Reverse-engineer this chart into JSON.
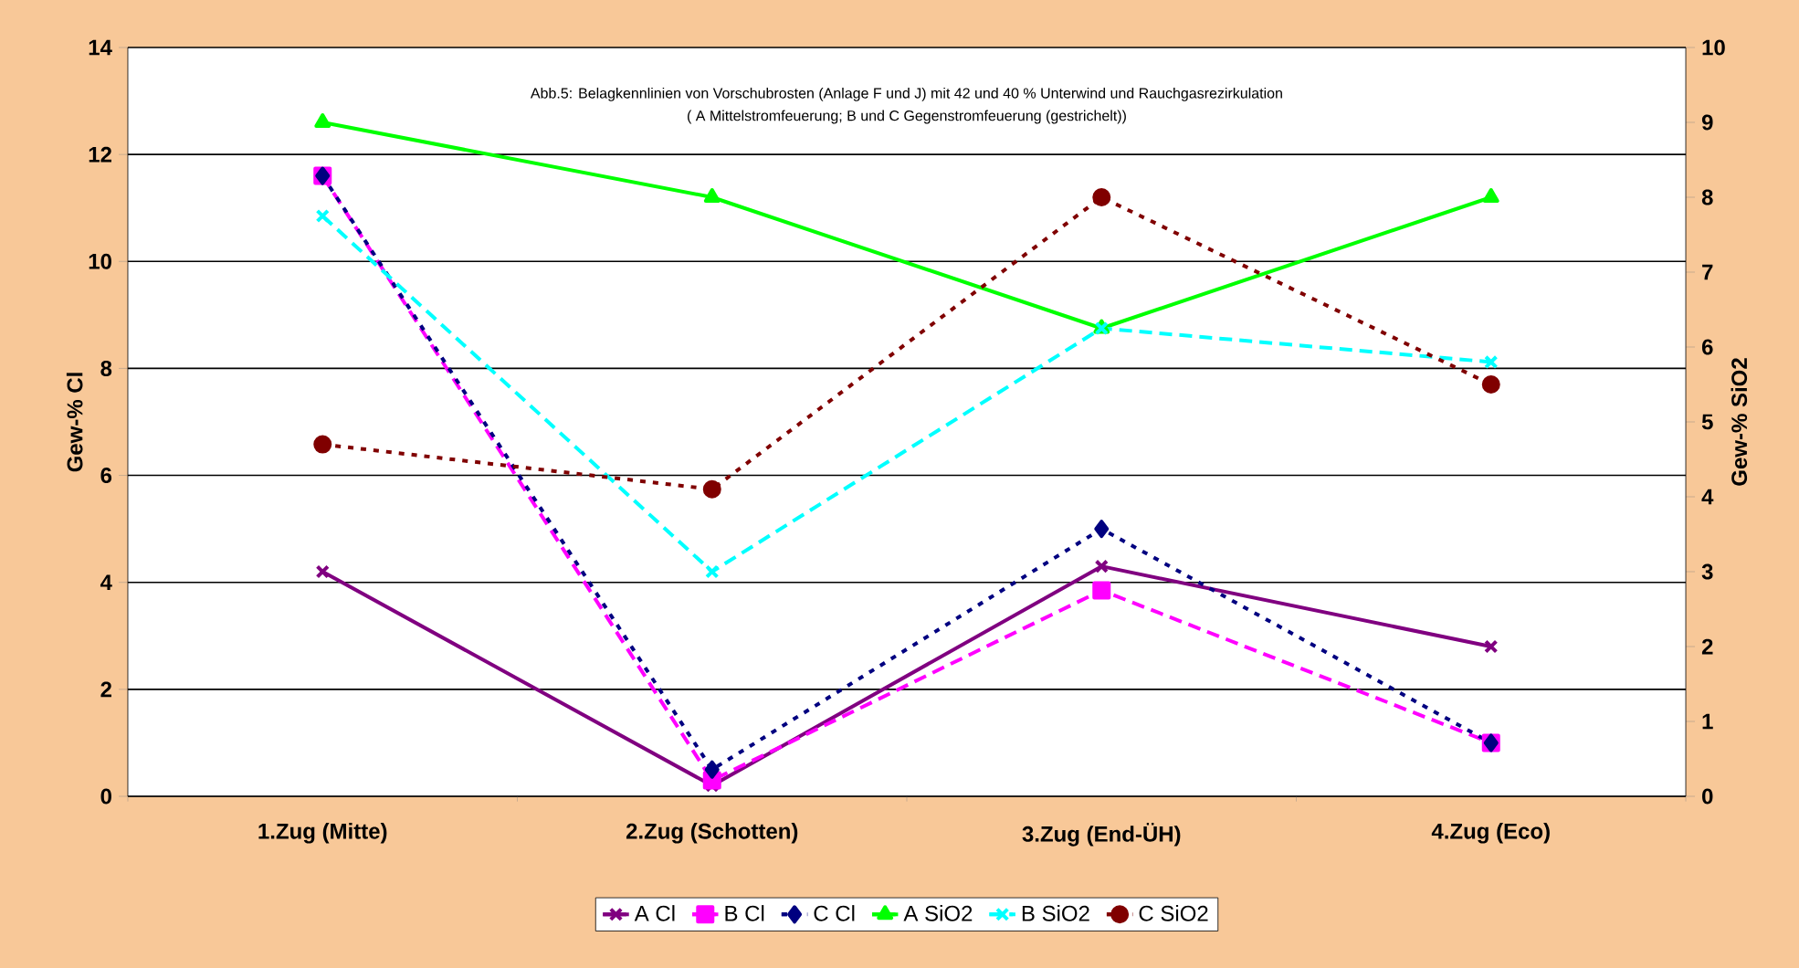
{
  "chart_data": {
    "type": "line",
    "title": "Abb.5: Belagkennlinien von Vorschubrosten (Anlage F und J) mit 42 und 40 % Unterwind und Rauchgasrezirkulation",
    "subtitle": "( A Mittelstromfeuerung; B und C Gegenstromfeuerung (gestrichelt))",
    "ylabel": "Gew-% Cl",
    "y2label": "Gew-% SiO2",
    "categories": [
      "1.Zug (Mitte)",
      "2.Zug (Schotten)",
      "3.Zug (End-ÜH)",
      "4.Zug (Eco)"
    ],
    "series": [
      {
        "name": "A Cl",
        "color": "#800080",
        "values": [
          4.2,
          0.2,
          4.3,
          2.8
        ],
        "marker": "cross",
        "line_style": "solid"
      },
      {
        "name": "B Cl",
        "color": "#ff00ff",
        "values": [
          11.6,
          0.3,
          3.85,
          1.0
        ],
        "marker": "square",
        "line_style": "dashed"
      },
      {
        "name": "C Cl",
        "color": "#000080",
        "values": [
          11.6,
          0.5,
          5.0,
          1.0
        ],
        "marker": "diamond",
        "line_style": "dotted"
      },
      {
        "name": "A SiO2",
        "color": "#00ff00",
        "values": [
          9.0,
          8.0,
          6.25,
          8.0
        ],
        "marker": "triangle",
        "line_style": "solid",
        "axis": "y2"
      },
      {
        "name": "B SiO2",
        "color": "#00ffff",
        "values": [
          7.75,
          3.0,
          6.25,
          5.8
        ],
        "marker": "cross",
        "line_style": "dashed",
        "axis": "y2"
      },
      {
        "name": "C SiO2",
        "color": "#800000",
        "values": [
          4.7,
          4.1,
          8.0,
          5.5
        ],
        "marker": "circle",
        "line_style": "dotted",
        "axis": "y2"
      }
    ],
    "ylim": [
      0,
      14
    ],
    "yticks": [
      0,
      2,
      4,
      6,
      8,
      10,
      12,
      14
    ],
    "y2lim": [
      0,
      10
    ],
    "y2ticks": [
      0,
      1,
      2,
      3,
      4,
      5,
      6,
      7,
      8,
      9,
      10
    ],
    "grid": "y",
    "legend": "bottom"
  }
}
